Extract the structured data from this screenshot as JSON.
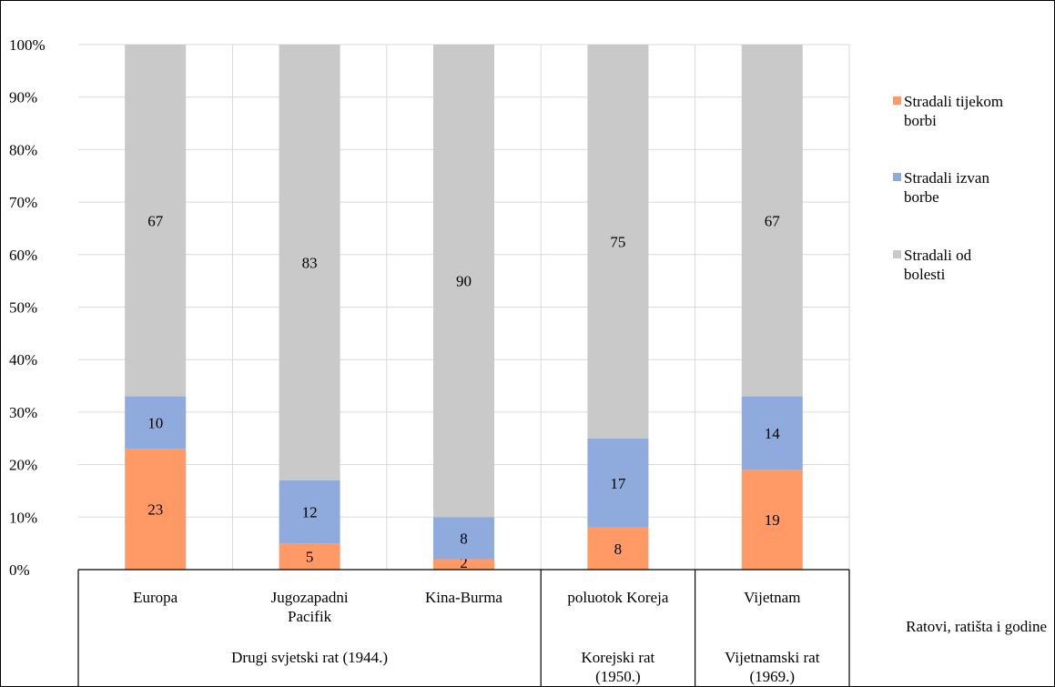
{
  "chart_data": {
    "type": "bar",
    "stacked": true,
    "percent_axis": true,
    "categories": [
      "Europa",
      "Jugozapadni Pacifik",
      "Kina-Burma",
      "poluotok Koreja",
      "Vijetnam"
    ],
    "category_lines": [
      [
        "Europa"
      ],
      [
        "Jugozapadni",
        "Pacifik"
      ],
      [
        "Kina-Burma"
      ],
      [
        "poluotok Koreja"
      ],
      [
        "Vijetnam"
      ]
    ],
    "groups": [
      {
        "label_lines": [
          "Drugi svjetski rat (1944.)"
        ],
        "span": [
          0,
          2
        ]
      },
      {
        "label_lines": [
          "Korejski rat",
          "(1950.)"
        ],
        "span": [
          3,
          3
        ]
      },
      {
        "label_lines": [
          "Vijetnamski rat",
          "(1969.)"
        ],
        "span": [
          4,
          4
        ]
      }
    ],
    "series": [
      {
        "name": "Stradali tijekom borbi",
        "name_lines": [
          "Stradali tijekom",
          "borbi"
        ],
        "color": "#FF9966",
        "values": [
          23,
          5,
          2,
          8,
          19
        ]
      },
      {
        "name": "Stradali izvan borbe",
        "name_lines": [
          "Stradali izvan",
          "borbe"
        ],
        "color": "#8FAADC",
        "values": [
          10,
          12,
          8,
          17,
          14
        ]
      },
      {
        "name": "Stradali od bolesti",
        "name_lines": [
          "Stradali od",
          "bolesti"
        ],
        "color": "#C9C9C9",
        "values": [
          67,
          83,
          90,
          75,
          67
        ]
      }
    ],
    "y_ticks": [
      "0%",
      "10%",
      "20%",
      "30%",
      "40%",
      "50%",
      "60%",
      "70%",
      "80%",
      "90%",
      "100%"
    ],
    "ylim": [
      0,
      100
    ],
    "xlabel": "Ratovi, ratišta i godine",
    "ylabel": "",
    "grid": true,
    "legend_position": "right"
  }
}
